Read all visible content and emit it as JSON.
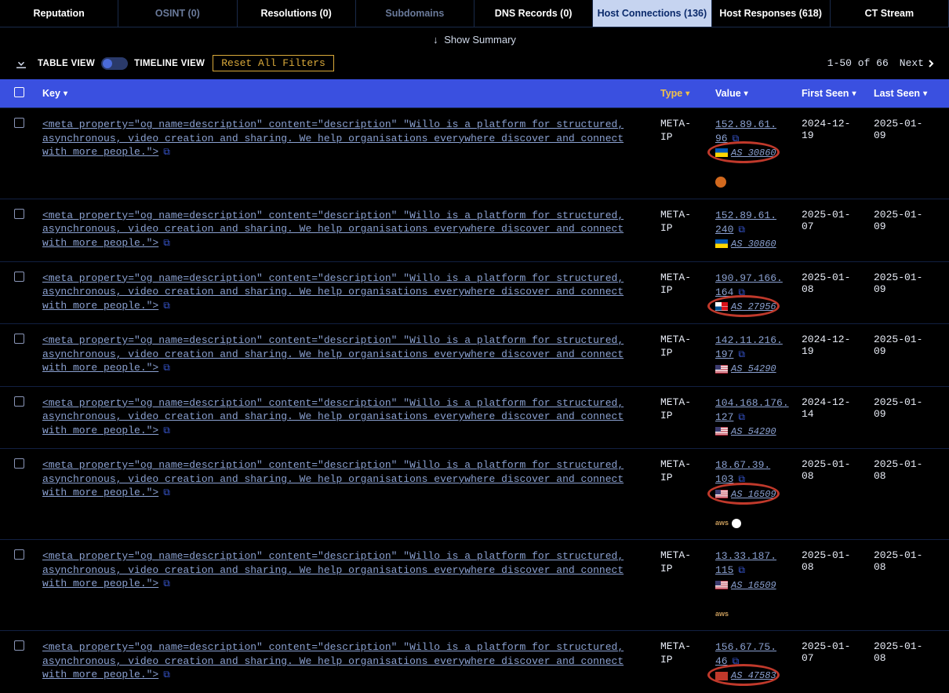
{
  "tabs": [
    {
      "label": "Reputation",
      "dim": false,
      "active": false
    },
    {
      "label": "OSINT (0)",
      "dim": true,
      "active": false
    },
    {
      "label": "Resolutions (0)",
      "dim": false,
      "active": false
    },
    {
      "label": "Subdomains",
      "dim": true,
      "active": false
    },
    {
      "label": "DNS Records (0)",
      "dim": false,
      "active": false
    },
    {
      "label": "Host Connections (136)",
      "dim": false,
      "active": true
    },
    {
      "label": "Host Responses (618)",
      "dim": false,
      "active": false
    },
    {
      "label": "CT Stream",
      "dim": false,
      "active": false
    }
  ],
  "summary": {
    "arrow": "↓",
    "text": "Show Summary"
  },
  "toolbar": {
    "table_view": "TABLE VIEW",
    "timeline_view": "TIMELINE VIEW",
    "reset": "Reset All Filters"
  },
  "pager": {
    "range": "1-50 of 66",
    "next": "Next"
  },
  "headers": {
    "key": "Key",
    "type": "Type",
    "value": "Value",
    "first_seen": "First Seen",
    "last_seen": "Last Seen"
  },
  "meta_key": "<meta property=\"og name=description\" content=\"description\" \"Willo is a platform for structured, asynchronous, video creation and sharing. We help organisations everywhere discover and connect with more people.\">",
  "copy_glyph": "⧉",
  "rows": [
    {
      "type": "META-IP",
      "ip": "152.89.61.96",
      "flag": "ua",
      "asn": "AS 30860",
      "provider": "apache",
      "first": "2024-12-19",
      "last": "2025-01-09",
      "ring": true
    },
    {
      "type": "META-IP",
      "ip": "152.89.61.240",
      "flag": "ua",
      "asn": "AS 30860",
      "provider": "",
      "first": "2025-01-07",
      "last": "2025-01-09",
      "ring": false
    },
    {
      "type": "META-IP",
      "ip": "190.97.166.164",
      "flag": "pa",
      "asn": "AS 27956",
      "provider": "",
      "first": "2025-01-08",
      "last": "2025-01-09",
      "ring": true
    },
    {
      "type": "META-IP",
      "ip": "142.11.216.197",
      "flag": "us",
      "asn": "AS 54290",
      "provider": "",
      "first": "2024-12-19",
      "last": "2025-01-09",
      "ring": false
    },
    {
      "type": "META-IP",
      "ip": "104.168.176.127",
      "flag": "us",
      "asn": "AS 54290",
      "provider": "",
      "first": "2024-12-14",
      "last": "2025-01-09",
      "ring": false
    },
    {
      "type": "META-IP",
      "ip": "18.67.39.103",
      "flag": "us",
      "asn": "AS 16509",
      "provider": "aws-fire",
      "first": "2025-01-08",
      "last": "2025-01-08",
      "ring": true
    },
    {
      "type": "META-IP",
      "ip": "13.33.187.115",
      "flag": "us",
      "asn": "AS 16509",
      "provider": "aws",
      "first": "2025-01-08",
      "last": "2025-01-08",
      "ring": false
    },
    {
      "type": "META-IP",
      "ip": "156.67.75.46",
      "flag": "unk",
      "asn": "AS 47583",
      "provider": "",
      "first": "2025-01-07",
      "last": "2025-01-08",
      "ring": true
    }
  ]
}
